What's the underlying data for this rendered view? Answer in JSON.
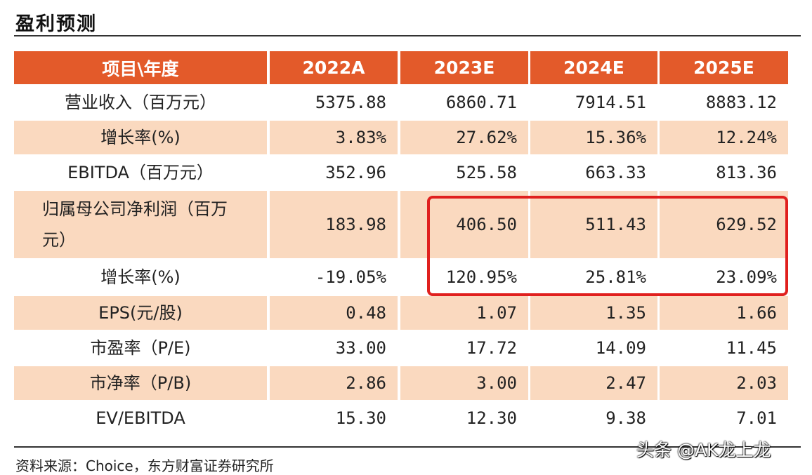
{
  "title": "盈利预测",
  "table": {
    "headers": [
      "项目\\年度",
      "2022A",
      "2023E",
      "2024E",
      "2025E"
    ],
    "rows": [
      {
        "label": "营业收入（百万元）",
        "values": [
          "5375.88",
          "6860.71",
          "7914.51",
          "8883.12"
        ]
      },
      {
        "label": "增长率(%)",
        "values": [
          "3.83%",
          "27.62%",
          "15.36%",
          "12.24%"
        ]
      },
      {
        "label": "EBITDA（百万元）",
        "values": [
          "352.96",
          "525.58",
          "663.33",
          "813.36"
        ]
      },
      {
        "label": "归属母公司净利润（百万元）",
        "values": [
          "183.98",
          "406.50",
          "511.43",
          "629.52"
        ]
      },
      {
        "label": "增长率(%)",
        "values": [
          "-19.05%",
          "120.95%",
          "25.81%",
          "23.09%"
        ]
      },
      {
        "label": "EPS(元/股)",
        "values": [
          "0.48",
          "1.07",
          "1.35",
          "1.66"
        ]
      },
      {
        "label": "市盈率（P/E)",
        "values": [
          "33.00",
          "17.72",
          "14.09",
          "11.45"
        ]
      },
      {
        "label": "市净率（P/B)",
        "values": [
          "2.86",
          "3.00",
          "2.47",
          "2.03"
        ]
      },
      {
        "label": "EV/EBITDA",
        "values": [
          "15.30",
          "12.30",
          "9.38",
          "7.01"
        ]
      }
    ]
  },
  "source": "资料来源：Choice，东方财富证券研究所",
  "watermark": "头条 @AK龙上龙",
  "colors": {
    "header_bg": "#e35a2a",
    "shaded_bg": "#fad9bf",
    "highlight": "#e0201e"
  }
}
